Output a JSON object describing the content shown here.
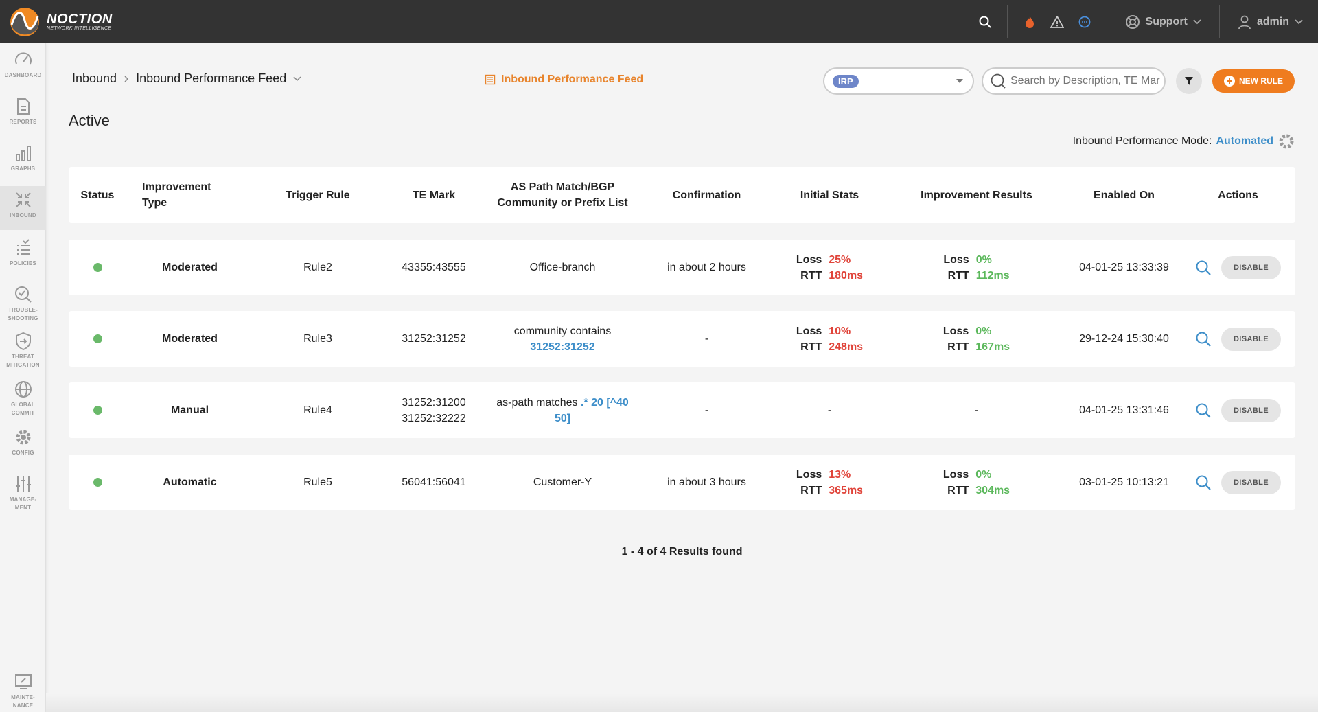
{
  "brand": {
    "name": "NOCTION",
    "tagline": "NETWORK INTELLIGENCE"
  },
  "topbar": {
    "support_label": "Support",
    "user_label": "admin"
  },
  "sidebar": {
    "items": [
      {
        "label": "DASHBOARD"
      },
      {
        "label": "REPORTS"
      },
      {
        "label": "GRAPHS"
      },
      {
        "label": "INBOUND"
      },
      {
        "label": "POLICIES"
      },
      {
        "label": "TROUBLE-SHOOTING"
      },
      {
        "label": "THREAT MITIGATION"
      },
      {
        "label": "GLOBAL COMMIT"
      },
      {
        "label": "CONFIG"
      },
      {
        "label": "MANAGE-MENT"
      },
      {
        "label": "MAINTE-NANCE"
      }
    ]
  },
  "breadcrumb": {
    "root": "Inbound",
    "current": "Inbound Performance Feed"
  },
  "feed_link": "Inbound Performance Feed",
  "irp_select": {
    "value": "IRP"
  },
  "search": {
    "placeholder": "Search by Description, TE Mar"
  },
  "new_rule_label": "NEW RULE",
  "page_title": "Active",
  "mode": {
    "label": "Inbound Performance Mode:",
    "value": "Automated"
  },
  "table": {
    "headers": {
      "status": "Status",
      "type_l1": "Improvement",
      "type_l2": "Type",
      "trigger": "Trigger Rule",
      "te": "TE Mark",
      "as_l1": "AS Path Match/BGP",
      "as_l2": "Community or Prefix List",
      "confirmation": "Confirmation",
      "initial": "Initial Stats",
      "improvement": "Improvement Results",
      "enabled": "Enabled On",
      "actions": "Actions"
    },
    "loss_label": "Loss",
    "rtt_label": "RTT",
    "action_label": "DISABLE",
    "rows": [
      {
        "type": "Moderated",
        "trigger": "Rule2",
        "te": "43355:43555",
        "as_text": "Office-branch",
        "confirmation": "in about 2 hours",
        "init_loss": "25%",
        "init_rtt": "180ms",
        "impr_loss": "0%",
        "impr_rtt": "112ms",
        "enabled": "04-01-25 13:33:39"
      },
      {
        "type": "Moderated",
        "trigger": "Rule3",
        "te": "31252:31252",
        "as_text": "community contains",
        "as_value": "31252:31252",
        "confirmation": "-",
        "init_loss": "10%",
        "init_rtt": "248ms",
        "impr_loss": "0%",
        "impr_rtt": "167ms",
        "enabled": "29-12-24 15:30:40"
      },
      {
        "type": "Manual",
        "trigger": "Rule4",
        "te": "31252:31200",
        "te2": "31252:32222",
        "as_text": "as-path matches",
        "as_value": ".* 20 [^40",
        "as_value2": "50]",
        "confirmation": "-",
        "init_dash": "-",
        "impr_dash": "-",
        "enabled": "04-01-25 13:31:46"
      },
      {
        "type": "Automatic",
        "trigger": "Rule5",
        "te": "56041:56041",
        "as_text": "Customer-Y",
        "confirmation": "in about 3 hours",
        "init_loss": "13%",
        "init_rtt": "365ms",
        "impr_loss": "0%",
        "impr_rtt": "304ms",
        "enabled": "03-01-25 10:13:21"
      }
    ]
  },
  "results_text": "1 - 4 of 4 Results found",
  "colors": {
    "accent": "#ef7c1f",
    "link": "#3d8ec9",
    "bad": "#e0443a",
    "good": "#5cb85c",
    "topbar": "#333333"
  }
}
